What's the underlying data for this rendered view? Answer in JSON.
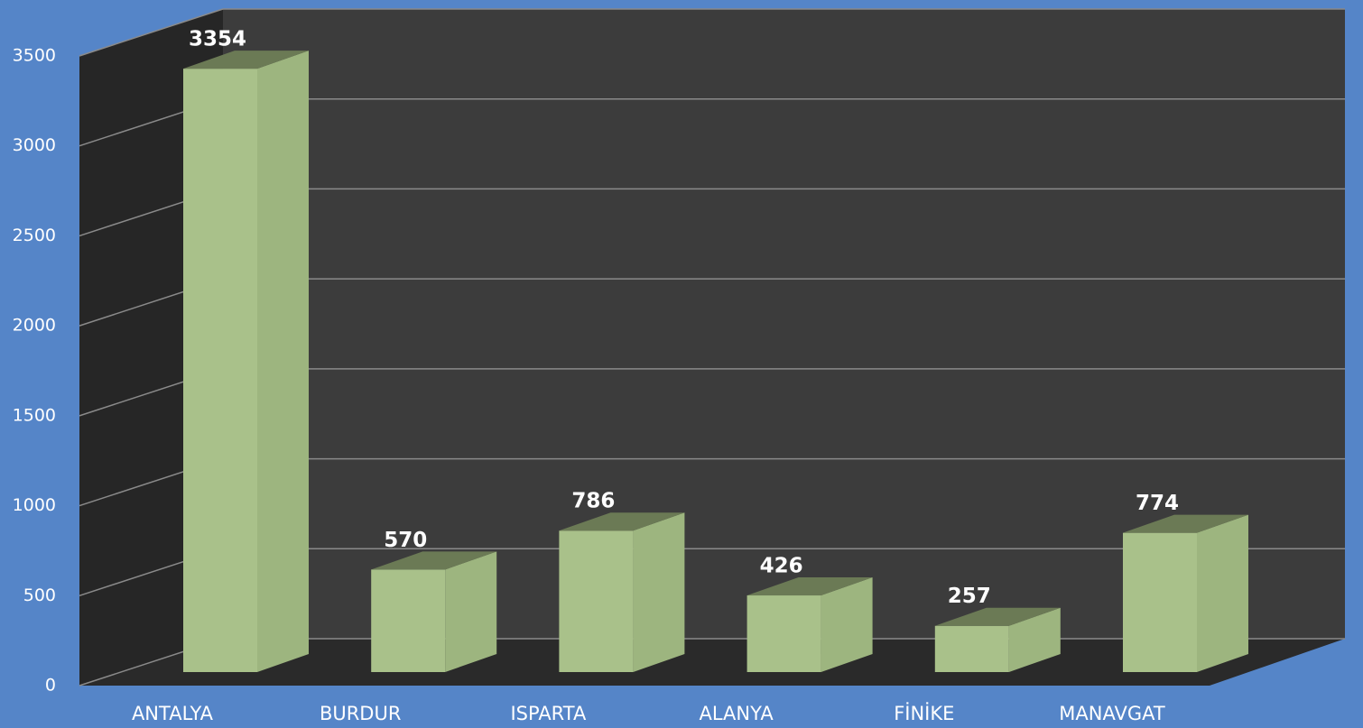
{
  "chart_data": {
    "type": "bar",
    "categories": [
      "ANTALYA",
      "BURDUR",
      "ISPARTA",
      "ALANYA",
      "FİNİKE",
      "MANAVGAT"
    ],
    "values": [
      3354,
      570,
      786,
      426,
      257,
      774
    ],
    "color": "#a9c18a",
    "ylim": [
      0,
      3500
    ],
    "yticks": [
      0,
      500,
      1000,
      1500,
      2000,
      2500,
      3000,
      3500
    ],
    "grid": true
  }
}
